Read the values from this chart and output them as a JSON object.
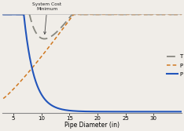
{
  "xlabel": "Pipe Diameter (in)",
  "xlim": [
    3,
    35
  ],
  "ylim": [
    0,
    1.05
  ],
  "xticks": [
    5,
    10,
    15,
    20,
    25,
    30
  ],
  "annotation_text": "System Cost\nMinimum",
  "background_color": "#f0ede8",
  "line_color_total": "#888880",
  "line_color_pipe": "#d07820",
  "line_color_pressure": "#2255bb",
  "legend_T": "T",
  "legend_P1": "P",
  "legend_P2": "P"
}
